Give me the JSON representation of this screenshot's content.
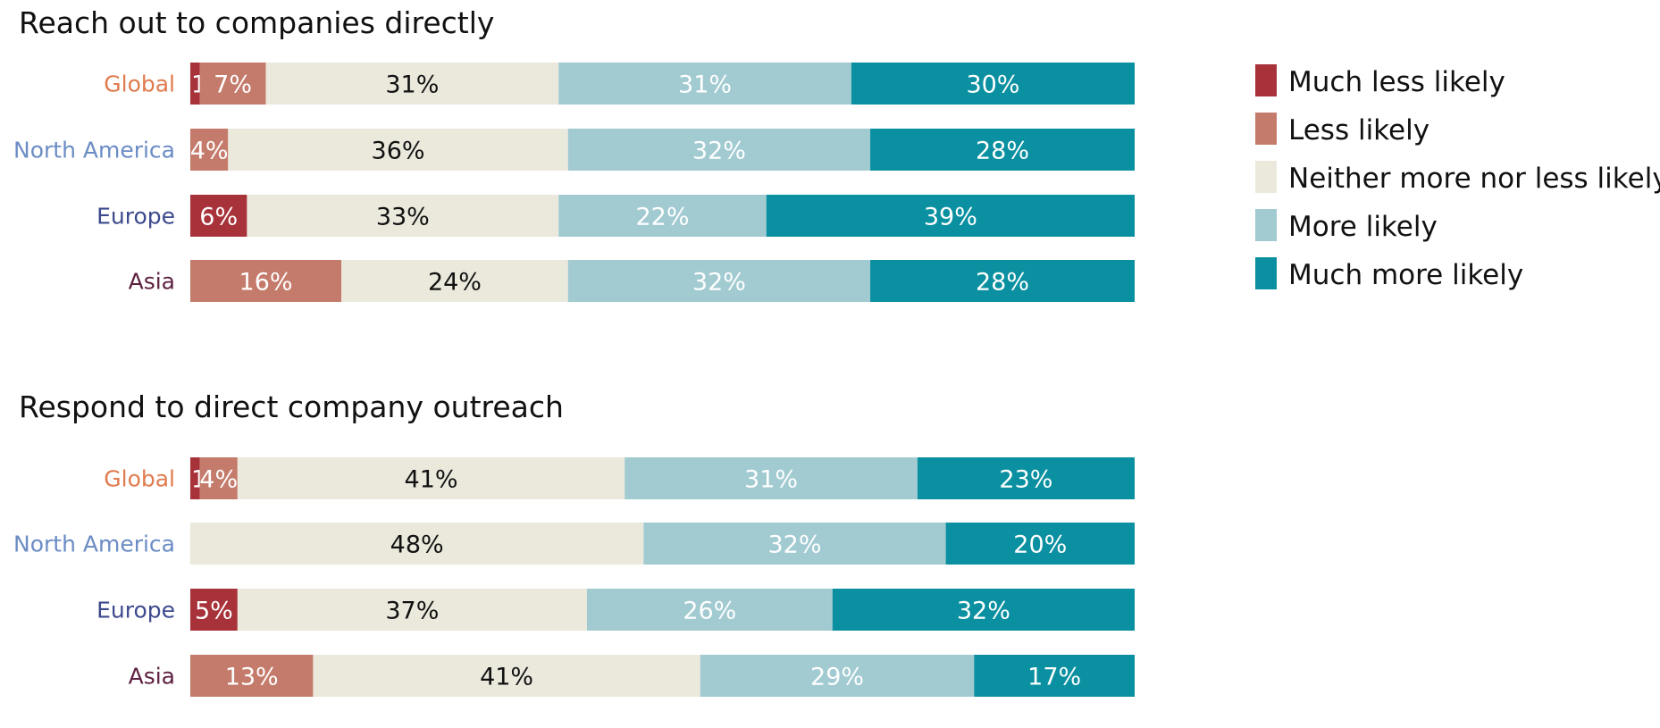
{
  "legend": {
    "placement": "right",
    "items": [
      {
        "label": "Much less likely",
        "color": "#a8323a"
      },
      {
        "label": "Less likely",
        "color": "#c47b6b"
      },
      {
        "label": "Neither more nor less likely",
        "color": "#ebe8dc"
      },
      {
        "label": "More likely",
        "color": "#a1cad1"
      },
      {
        "label": "Much more likely",
        "color": "#0a90a1"
      }
    ]
  },
  "chart_data": [
    {
      "type": "bar",
      "orientation": "horizontal",
      "stacked": true,
      "title": "Reach out to companies directly",
      "categories": [
        "Global",
        "North America",
        "Europe",
        "Asia"
      ],
      "category_colors": [
        "#e07b4e",
        "#6b8cc4",
        "#3e4a8e",
        "#5e2140"
      ],
      "series": [
        {
          "name": "Much less likely",
          "values": [
            1,
            0,
            6,
            0
          ],
          "labels": [
            "1%",
            "",
            "6%",
            ""
          ]
        },
        {
          "name": "Less likely",
          "values": [
            7,
            4,
            0,
            16
          ],
          "labels": [
            "7%",
            "4%",
            "",
            "16%"
          ]
        },
        {
          "name": "Neither more nor less likely",
          "values": [
            31,
            36,
            33,
            24
          ],
          "labels": [
            "31%",
            "36%",
            "33%",
            "24%"
          ]
        },
        {
          "name": "More likely",
          "values": [
            31,
            32,
            22,
            32
          ],
          "labels": [
            "31%",
            "32%",
            "22%",
            "32%"
          ]
        },
        {
          "name": "Much more likely",
          "values": [
            30,
            28,
            39,
            28
          ],
          "labels": [
            "30%",
            "28%",
            "39%",
            "28%"
          ]
        }
      ],
      "xlim": [
        0,
        100
      ],
      "grid": false
    },
    {
      "type": "bar",
      "orientation": "horizontal",
      "stacked": true,
      "title": "Respond to direct company outreach",
      "categories": [
        "Global",
        "North America",
        "Europe",
        "Asia"
      ],
      "category_colors": [
        "#e07b4e",
        "#6b8cc4",
        "#3e4a8e",
        "#5e2140"
      ],
      "series": [
        {
          "name": "Much less likely",
          "values": [
            1,
            0,
            5,
            0
          ],
          "labels": [
            "1%",
            "",
            "5%",
            ""
          ]
        },
        {
          "name": "Less likely",
          "values": [
            4,
            0,
            0,
            13
          ],
          "labels": [
            "4%",
            "",
            "",
            "13%"
          ]
        },
        {
          "name": "Neither more nor less likely",
          "values": [
            41,
            48,
            37,
            41
          ],
          "labels": [
            "41%",
            "48%",
            "37%",
            "41%"
          ]
        },
        {
          "name": "More likely",
          "values": [
            31,
            32,
            26,
            29
          ],
          "labels": [
            "31%",
            "32%",
            "26%",
            "29%"
          ]
        },
        {
          "name": "Much more likely",
          "values": [
            23,
            20,
            32,
            17
          ],
          "labels": [
            "23%",
            "20%",
            "32%",
            "17%"
          ]
        }
      ],
      "xlim": [
        0,
        100
      ],
      "grid": false
    }
  ]
}
